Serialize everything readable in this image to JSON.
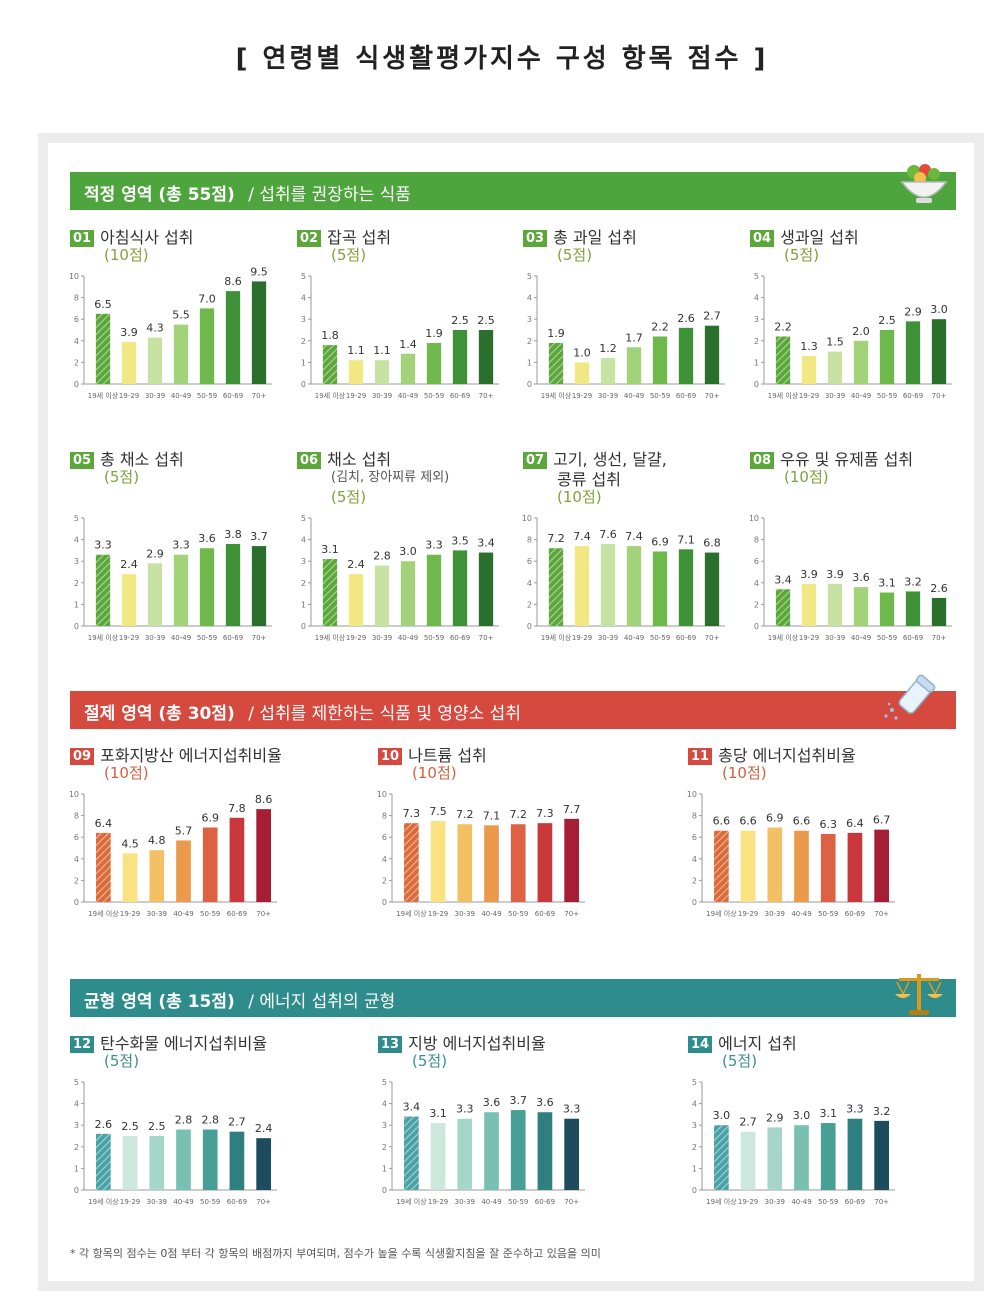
{
  "page_title": "[ 연령별 식생활평가지수 구성 항목 점수 ]",
  "footnote": "* 각 항목의 점수는 0점 부터 각 항목의 배점까지 부여되며, 점수가 높을 수록 식생활지침을 잘 준수하고 있음을 의미",
  "sections": [
    {
      "title": "적정 영역 (총 55점)",
      "subtitle": "/ 섭취를 권장하는 식품",
      "color": "#4ea53d",
      "icon": "salad-bowl-icon"
    },
    {
      "title": "절제 영역 (총 30점)",
      "subtitle": "/ 섭취를 제한하는 식품 및 영양소 섭취",
      "color": "#d6493f",
      "icon": "salt-shaker-icon"
    },
    {
      "title": "균형 영역 (총 15점)",
      "subtitle": "/ 에너지 섭취의 균형",
      "color": "#2f8c8d",
      "icon": "balance-scale-icon"
    }
  ],
  "chart_data": [
    {
      "type": "bar",
      "num": "01",
      "title": "아침식사 섭취",
      "note": "",
      "points": "(10점)",
      "categories": [
        "19세 이상",
        "19-29",
        "30-39",
        "40-49",
        "50-59",
        "60-69",
        "70+"
      ],
      "values": [
        6.5,
        3.9,
        4.3,
        5.5,
        7.0,
        8.6,
        9.5
      ],
      "labels": [
        "6.5",
        "3.9",
        "4.3",
        "5.5",
        "7.0",
        "8.6",
        "9.5"
      ],
      "ylim": [
        0,
        10
      ],
      "ticks": [
        "0",
        "2",
        "4",
        "6",
        "8",
        "10"
      ],
      "colors": [
        "#5ca73a",
        "#f1e884",
        "#c7e2a2",
        "#a2d27a",
        "#6fb94c",
        "#3f9137",
        "#2a6f2c"
      ],
      "num_color": "#5ca73a"
    },
    {
      "type": "bar",
      "num": "02",
      "title": "잡곡 섭취",
      "note": "",
      "points": "(5점)",
      "categories": [
        "19세 이상",
        "19-29",
        "30-39",
        "40-49",
        "50-59",
        "60-69",
        "70+"
      ],
      "values": [
        1.8,
        1.1,
        1.1,
        1.4,
        1.9,
        2.5,
        2.5
      ],
      "labels": [
        "1.8",
        "1.1",
        "1.1",
        "1.4",
        "1.9",
        "2.5",
        "2.5"
      ],
      "ylim": [
        0,
        5
      ],
      "ticks": [
        "0",
        "1",
        "2",
        "3",
        "4",
        "5"
      ],
      "colors": [
        "#5ca73a",
        "#f1e884",
        "#c7e2a2",
        "#a2d27a",
        "#6fb94c",
        "#3f9137",
        "#2a6f2c"
      ],
      "num_color": "#5ca73a"
    },
    {
      "type": "bar",
      "num": "03",
      "title": "총 과일 섭취",
      "note": "",
      "points": "(5점)",
      "categories": [
        "19세 이상",
        "19-29",
        "30-39",
        "40-49",
        "50-59",
        "60-69",
        "70+"
      ],
      "values": [
        1.9,
        1.0,
        1.2,
        1.7,
        2.2,
        2.6,
        2.7
      ],
      "labels": [
        "1.9",
        "1.0",
        "1.2",
        "1.7",
        "2.2",
        "2.6",
        "2.7"
      ],
      "ylim": [
        0,
        5
      ],
      "ticks": [
        "0",
        "1",
        "2",
        "3",
        "4",
        "5"
      ],
      "colors": [
        "#5ca73a",
        "#f1e884",
        "#c7e2a2",
        "#a2d27a",
        "#6fb94c",
        "#3f9137",
        "#2a6f2c"
      ],
      "num_color": "#5ca73a"
    },
    {
      "type": "bar",
      "num": "04",
      "title": "생과일 섭취",
      "note": "",
      "points": "(5점)",
      "categories": [
        "19세 이상",
        "19-29",
        "30-39",
        "40-49",
        "50-59",
        "60-69",
        "70+"
      ],
      "values": [
        2.2,
        1.3,
        1.5,
        2.0,
        2.5,
        2.9,
        3.0
      ],
      "labels": [
        "2.2",
        "1.3",
        "1.5",
        "2.0",
        "2.5",
        "2.9",
        "3.0"
      ],
      "ylim": [
        0,
        5
      ],
      "ticks": [
        "0",
        "1",
        "2",
        "3",
        "4",
        "5"
      ],
      "colors": [
        "#5ca73a",
        "#f1e884",
        "#c7e2a2",
        "#a2d27a",
        "#6fb94c",
        "#3f9137",
        "#2a6f2c"
      ],
      "num_color": "#5ca73a"
    },
    {
      "type": "bar",
      "num": "05",
      "title": "총 채소 섭취",
      "note": "",
      "points": "(5점)",
      "categories": [
        "19세 이상",
        "19-29",
        "30-39",
        "40-49",
        "50-59",
        "60-69",
        "70+"
      ],
      "values": [
        3.3,
        2.4,
        2.9,
        3.3,
        3.6,
        3.8,
        3.7
      ],
      "labels": [
        "3.3",
        "2.4",
        "2.9",
        "3.3",
        "3.6",
        "3.8",
        "3.7"
      ],
      "ylim": [
        0,
        5
      ],
      "ticks": [
        "0",
        "1",
        "2",
        "3",
        "4",
        "5"
      ],
      "colors": [
        "#5ca73a",
        "#f1e884",
        "#c7e2a2",
        "#a2d27a",
        "#6fb94c",
        "#3f9137",
        "#2a6f2c"
      ],
      "num_color": "#5ca73a"
    },
    {
      "type": "bar",
      "num": "06",
      "title": "채소 섭취",
      "note": "(김치, 장아찌류 제외)",
      "points": "(5점)",
      "categories": [
        "19세 이상",
        "19-29",
        "30-39",
        "40-49",
        "50-59",
        "60-69",
        "70+"
      ],
      "values": [
        3.1,
        2.4,
        2.8,
        3.0,
        3.3,
        3.5,
        3.4
      ],
      "labels": [
        "3.1",
        "2.4",
        "2.8",
        "3.0",
        "3.3",
        "3.5",
        "3.4"
      ],
      "ylim": [
        0,
        5
      ],
      "ticks": [
        "0",
        "1",
        "2",
        "3",
        "4",
        "5"
      ],
      "colors": [
        "#5ca73a",
        "#f1e884",
        "#c7e2a2",
        "#a2d27a",
        "#6fb94c",
        "#3f9137",
        "#2a6f2c"
      ],
      "num_color": "#5ca73a"
    },
    {
      "type": "bar",
      "num": "07",
      "title": "고기, 생선, 달걀,",
      "note": "콩류 섭취",
      "points": "(10점)",
      "categories": [
        "19세 이상",
        "19-29",
        "30-39",
        "40-49",
        "50-59",
        "60-69",
        "70+"
      ],
      "values": [
        7.2,
        7.4,
        7.6,
        7.4,
        6.9,
        7.1,
        6.8
      ],
      "labels": [
        "7.2",
        "7.4",
        "7.6",
        "7.4",
        "6.9",
        "7.1",
        "6.8"
      ],
      "ylim": [
        0,
        10
      ],
      "ticks": [
        "0",
        "2",
        "4",
        "6",
        "8",
        "10"
      ],
      "colors": [
        "#5ca73a",
        "#f1e884",
        "#c7e2a2",
        "#a2d27a",
        "#6fb94c",
        "#3f9137",
        "#2a6f2c"
      ],
      "num_color": "#5ca73a"
    },
    {
      "type": "bar",
      "num": "08",
      "title": "우유 및 유제품 섭취",
      "note": "",
      "points": "(10점)",
      "categories": [
        "19세 이상",
        "19-29",
        "30-39",
        "40-49",
        "50-59",
        "60-69",
        "70+"
      ],
      "values": [
        3.4,
        3.9,
        3.9,
        3.6,
        3.1,
        3.2,
        2.6
      ],
      "labels": [
        "3.4",
        "3.9",
        "3.9",
        "3.6",
        "3.1",
        "3.2",
        "2.6"
      ],
      "ylim": [
        0,
        10
      ],
      "ticks": [
        "0",
        "2",
        "4",
        "6",
        "8",
        "10"
      ],
      "colors": [
        "#5ca73a",
        "#f1e884",
        "#c7e2a2",
        "#a2d27a",
        "#6fb94c",
        "#3f9137",
        "#2a6f2c"
      ],
      "num_color": "#5ca73a"
    },
    {
      "type": "bar",
      "num": "09",
      "title": "포화지방산 에너지섭취비율",
      "note": "",
      "points": "(10점)",
      "categories": [
        "19세 이상",
        "19-29",
        "30-39",
        "40-49",
        "50-59",
        "60-69",
        "70+"
      ],
      "values": [
        6.4,
        4.5,
        4.8,
        5.7,
        6.9,
        7.8,
        8.6
      ],
      "labels": [
        "6.4",
        "4.5",
        "4.8",
        "5.7",
        "6.9",
        "7.8",
        "8.6"
      ],
      "ylim": [
        0,
        10
      ],
      "ticks": [
        "0",
        "2",
        "4",
        "6",
        "8",
        "10"
      ],
      "colors": [
        "#dd6b3a",
        "#f9e27f",
        "#f4c064",
        "#eb9a4b",
        "#dd6244",
        "#c9383b",
        "#a51e35"
      ],
      "num_color": "#d6493f"
    },
    {
      "type": "bar",
      "num": "10",
      "title": "나트륨 섭취",
      "note": "",
      "points": "(10점)",
      "categories": [
        "19세 이상",
        "19-29",
        "30-39",
        "40-49",
        "50-59",
        "60-69",
        "70+"
      ],
      "values": [
        7.3,
        7.5,
        7.2,
        7.1,
        7.2,
        7.3,
        7.7
      ],
      "labels": [
        "7.3",
        "7.5",
        "7.2",
        "7.1",
        "7.2",
        "7.3",
        "7.7"
      ],
      "ylim": [
        0,
        10
      ],
      "ticks": [
        "0",
        "2",
        "4",
        "6",
        "8",
        "10"
      ],
      "colors": [
        "#dd6b3a",
        "#f9e27f",
        "#f4c064",
        "#eb9a4b",
        "#dd6244",
        "#c9383b",
        "#a51e35"
      ],
      "num_color": "#d6493f"
    },
    {
      "type": "bar",
      "num": "11",
      "title": "총당 에너지섭취비율",
      "note": "",
      "points": "(10점)",
      "categories": [
        "19세 이상",
        "19-29",
        "30-39",
        "40-49",
        "50-59",
        "60-69",
        "70+"
      ],
      "values": [
        6.6,
        6.6,
        6.9,
        6.6,
        6.3,
        6.4,
        6.7
      ],
      "labels": [
        "6.6",
        "6.6",
        "6.9",
        "6.6",
        "6.3",
        "6.4",
        "6.7"
      ],
      "ylim": [
        0,
        10
      ],
      "ticks": [
        "0",
        "2",
        "4",
        "6",
        "8",
        "10"
      ],
      "colors": [
        "#dd6b3a",
        "#f9e27f",
        "#f4c064",
        "#eb9a4b",
        "#dd6244",
        "#c9383b",
        "#a51e35"
      ],
      "num_color": "#d6493f"
    },
    {
      "type": "bar",
      "num": "12",
      "title": "탄수화물 에너지섭취비율",
      "note": "",
      "points": "(5점)",
      "categories": [
        "19세 이상",
        "19-29",
        "30-39",
        "40-49",
        "50-59",
        "60-69",
        "70+"
      ],
      "values": [
        2.6,
        2.5,
        2.5,
        2.8,
        2.8,
        2.7,
        2.4
      ],
      "labels": [
        "2.6",
        "2.5",
        "2.5",
        "2.8",
        "2.8",
        "2.7",
        "2.4"
      ],
      "ylim": [
        0,
        5
      ],
      "ticks": [
        "0",
        "1",
        "2",
        "3",
        "4",
        "5"
      ],
      "colors": [
        "#49a3a6",
        "#cce8dc",
        "#a6d6c9",
        "#78c0b2",
        "#479f95",
        "#2f7e80",
        "#1d4c5e"
      ],
      "num_color": "#2f8c8d"
    },
    {
      "type": "bar",
      "num": "13",
      "title": "지방 에너지섭취비율",
      "note": "",
      "points": "(5점)",
      "categories": [
        "19세 이상",
        "19-29",
        "30-39",
        "40-49",
        "50-59",
        "60-69",
        "70+"
      ],
      "values": [
        3.4,
        3.1,
        3.3,
        3.6,
        3.7,
        3.6,
        3.3
      ],
      "labels": [
        "3.4",
        "3.1",
        "3.3",
        "3.6",
        "3.7",
        "3.6",
        "3.3"
      ],
      "ylim": [
        0,
        5
      ],
      "ticks": [
        "0",
        "1",
        "2",
        "3",
        "4",
        "5"
      ],
      "colors": [
        "#49a3a6",
        "#cce8dc",
        "#a6d6c9",
        "#78c0b2",
        "#479f95",
        "#2f7e80",
        "#1d4c5e"
      ],
      "num_color": "#2f8c8d"
    },
    {
      "type": "bar",
      "num": "14",
      "title": "에너지 섭취",
      "note": "",
      "points": "(5점)",
      "categories": [
        "19세 이상",
        "19-29",
        "30-39",
        "40-49",
        "50-59",
        "60-69",
        "70+"
      ],
      "values": [
        3.0,
        2.7,
        2.9,
        3.0,
        3.1,
        3.3,
        3.2
      ],
      "labels": [
        "3.0",
        "2.7",
        "2.9",
        "3.0",
        "3.1",
        "3.3",
        "3.2"
      ],
      "ylim": [
        0,
        5
      ],
      "ticks": [
        "0",
        "1",
        "2",
        "3",
        "4",
        "5"
      ],
      "colors": [
        "#49a3a6",
        "#cce8dc",
        "#a6d6c9",
        "#78c0b2",
        "#479f95",
        "#2f7e80",
        "#1d4c5e"
      ],
      "num_color": "#2f8c8d"
    }
  ]
}
